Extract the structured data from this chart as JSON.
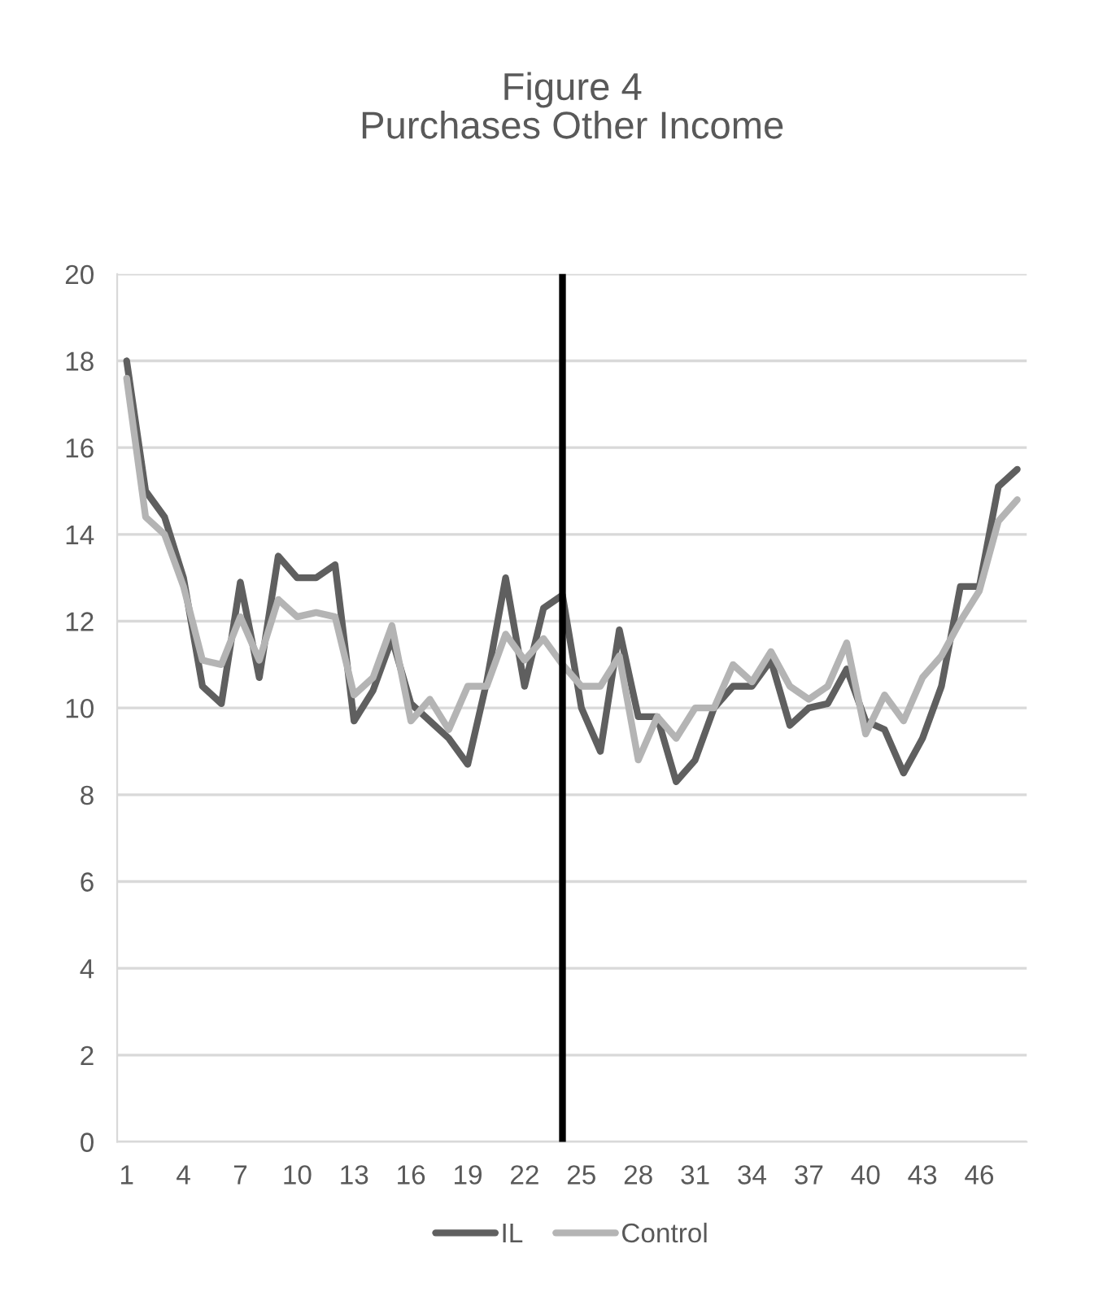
{
  "chart_data": {
    "type": "line",
    "title": "Figure 4\nPurchases Other Income",
    "x": [
      1,
      2,
      3,
      4,
      5,
      6,
      7,
      8,
      9,
      10,
      11,
      12,
      13,
      14,
      15,
      16,
      17,
      18,
      19,
      20,
      21,
      22,
      23,
      24,
      25,
      26,
      27,
      28,
      29,
      30,
      31,
      32,
      33,
      34,
      35,
      36,
      37,
      38,
      39,
      40,
      41,
      42,
      43,
      44,
      45,
      46,
      47,
      48
    ],
    "series": [
      {
        "name": "IL",
        "color": "#5f5f5f",
        "values": [
          18.0,
          15.0,
          14.4,
          13.0,
          10.5,
          10.1,
          12.9,
          10.7,
          13.5,
          13.0,
          13.0,
          13.3,
          9.7,
          10.4,
          11.6,
          10.1,
          9.7,
          9.3,
          8.7,
          10.6,
          13.0,
          10.5,
          12.3,
          12.6,
          10.0,
          9.0,
          11.8,
          9.8,
          9.8,
          8.3,
          8.8,
          10.0,
          10.5,
          10.5,
          11.1,
          9.6,
          10.0,
          10.1,
          10.9,
          9.7,
          9.5,
          8.5,
          9.3,
          10.5,
          12.8,
          12.8,
          15.1,
          15.5
        ]
      },
      {
        "name": "Control",
        "color": "#b4b4b4",
        "values": [
          17.6,
          14.4,
          14.0,
          12.8,
          11.1,
          11.0,
          12.1,
          11.1,
          12.5,
          12.1,
          12.2,
          12.1,
          10.3,
          10.7,
          11.9,
          9.7,
          10.2,
          9.5,
          10.5,
          10.5,
          11.7,
          11.1,
          11.6,
          11.0,
          10.5,
          10.5,
          11.2,
          8.8,
          9.8,
          9.3,
          10.0,
          10.0,
          11.0,
          10.6,
          11.3,
          10.5,
          10.2,
          10.5,
          11.5,
          9.4,
          10.3,
          9.7,
          10.7,
          11.2,
          12.0,
          12.7,
          14.3,
          14.8
        ]
      }
    ],
    "xlim": [
      0.5,
      48.5
    ],
    "xticks": [
      1,
      4,
      7,
      10,
      13,
      16,
      19,
      22,
      25,
      28,
      31,
      34,
      37,
      40,
      43,
      46
    ],
    "ylim": [
      0,
      20
    ],
    "yticks": [
      0,
      2,
      4,
      6,
      8,
      10,
      12,
      14,
      16,
      18,
      20
    ],
    "ref_lines": [
      {
        "axis": "x",
        "value": 24,
        "color": "#000000"
      }
    ],
    "grid": "y",
    "legend": "bottom",
    "marker": "none",
    "line_style": "solid"
  }
}
